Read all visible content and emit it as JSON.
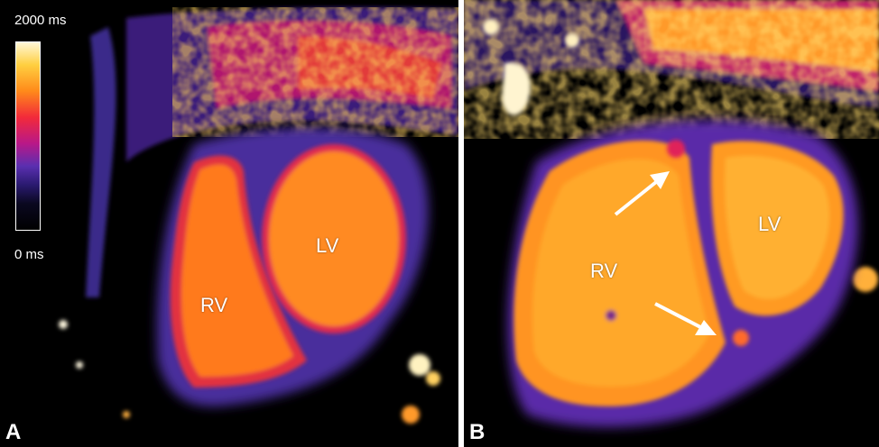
{
  "panels": [
    {
      "letter": "A",
      "labels": {
        "rv": "RV",
        "lv": "LV"
      },
      "scale": {
        "max_label": "2000 ms",
        "min_label": "0 ms"
      }
    },
    {
      "letter": "B",
      "labels": {
        "rv": "RV",
        "lv": "LV"
      }
    }
  ],
  "colors": {
    "background": "#000000",
    "tissue_low": "#3a2a8a",
    "tissue_mid": "#6a3cb6",
    "blood_pool": "#ff8a1a",
    "blood_pool_bright": "#ffae2a",
    "border_red": "#e02050",
    "arrow": "#ffffff",
    "divider": "#ffffff"
  }
}
